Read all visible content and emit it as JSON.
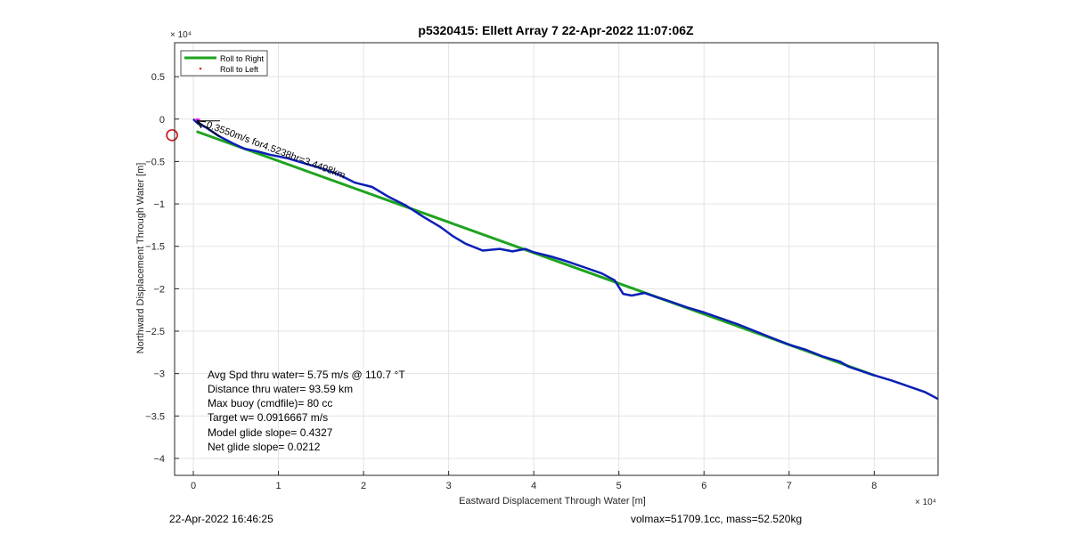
{
  "chart_data": {
    "type": "line",
    "title": "p5320415: Ellett Array 7 22-Apr-2022 11:07:06Z",
    "xlabel": "Eastward Displacement Through Water [m]",
    "ylabel": "Northward Displacement Through Water [m]",
    "x_multiplier_label": "× 10⁴",
    "y_multiplier_label": "× 10⁴",
    "xlim": [
      -0.22,
      8.75
    ],
    "ylim": [
      -4.2,
      0.9
    ],
    "x_ticks": [
      0,
      1,
      2,
      3,
      4,
      5,
      6,
      7,
      8
    ],
    "y_ticks": [
      0.5,
      0,
      -0.5,
      -1,
      -1.5,
      -2,
      -2.5,
      -3,
      -3.5,
      -4
    ],
    "grid": true,
    "legend": {
      "placement": "top-left",
      "entries": [
        {
          "name": "Roll to Right",
          "color": "#1fa31f",
          "style": "line"
        },
        {
          "name": "Roll to Left",
          "color": "#e0201b",
          "style": "dot"
        }
      ]
    },
    "series": [
      {
        "color": "#0a1fb5",
        "x": [
          0,
          0.05,
          0.15,
          0.3,
          0.45,
          0.6,
          0.75,
          0.9,
          1.1,
          1.3,
          1.5,
          1.7,
          1.9,
          2.1,
          2.3,
          2.5,
          2.7,
          2.9,
          3.05,
          3.2,
          3.4,
          3.6,
          3.75,
          3.9,
          4.0,
          4.2,
          4.4,
          4.6,
          4.8,
          4.95,
          5.05,
          5.15,
          5.3,
          5.45,
          5.6,
          5.8,
          6.0,
          6.2,
          6.4,
          6.6,
          6.8,
          7.0,
          7.2,
          7.4,
          7.6,
          7.7,
          7.85,
          8.0,
          8.2,
          8.4,
          8.6,
          8.75
        ],
        "y": [
          0,
          -0.05,
          -0.1,
          -0.2,
          -0.28,
          -0.35,
          -0.38,
          -0.42,
          -0.46,
          -0.52,
          -0.58,
          -0.65,
          -0.75,
          -0.8,
          -0.92,
          -1.02,
          -1.15,
          -1.27,
          -1.38,
          -1.47,
          -1.55,
          -1.53,
          -1.56,
          -1.53,
          -1.57,
          -1.62,
          -1.68,
          -1.75,
          -1.82,
          -1.9,
          -2.06,
          -2.08,
          -2.05,
          -2.1,
          -2.15,
          -2.22,
          -2.28,
          -2.35,
          -2.42,
          -2.5,
          -2.58,
          -2.66,
          -2.72,
          -2.8,
          -2.86,
          -2.92,
          -2.97,
          -3.02,
          -3.08,
          -3.15,
          -3.22,
          -3.3
        ]
      },
      {
        "color": "#1fa31f",
        "x": [
          0.05,
          8.0
        ],
        "y": [
          -0.15,
          -3.02
        ]
      }
    ],
    "text_annotations": [
      {
        "text": "Avg Spd thru water=  5.75 m/s @ 110.7 °T"
      },
      {
        "text": "Distance thru water= 93.59 km"
      },
      {
        "text": "Max buoy (cmdfile)= 80 cc"
      },
      {
        "text": "Target w= 0.0916667 m/s"
      },
      {
        "text": "Model glide slope= 0.4327"
      },
      {
        "text": "Net glide slope= 0.0212"
      }
    ],
    "arrow_label": "0.3550m/s for4.5238hr=3.4498km",
    "target_marker": {
      "x": -0.25,
      "y": -0.19,
      "color": "#cc1111"
    }
  },
  "footer": {
    "left": "22-Apr-2022 16:46:25",
    "right": "volmax=51709.1cc, mass=52.520kg"
  }
}
